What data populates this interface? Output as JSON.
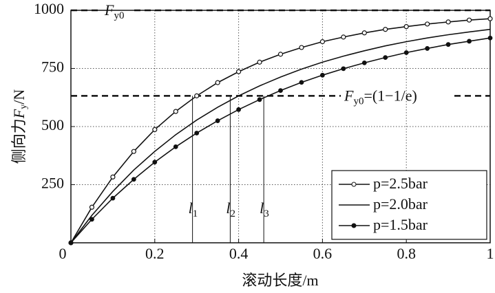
{
  "chart_data": {
    "type": "line",
    "xlabel": "滚动长度/m",
    "ylabel": {
      "main": "侧向力",
      "var": "F",
      "sub": "y",
      "tail": "/N"
    },
    "xlim": [
      0,
      1
    ],
    "ylim": [
      0,
      1000
    ],
    "xticks": [
      0,
      0.2,
      0.4,
      0.6,
      0.8,
      1
    ],
    "yticks": [
      250,
      500,
      750,
      1000
    ],
    "grid": true,
    "legend": "lower right",
    "x": [
      0,
      0.05,
      0.1,
      0.15,
      0.2,
      0.25,
      0.3,
      0.35,
      0.4,
      0.45,
      0.5,
      0.55,
      0.6,
      0.65,
      0.7,
      0.75,
      0.8,
      0.85,
      0.9,
      0.95,
      1
    ],
    "series": [
      {
        "name": "p=2.5bar",
        "color": "#111111",
        "marker": "open-circle",
        "values": [
          0,
          153,
          283,
          393,
          487,
          565,
          632,
          689,
          736,
          777,
          811,
          840,
          865,
          885,
          903,
          918,
          930,
          941,
          950,
          958,
          964
        ]
      },
      {
        "name": "p=2.0bar",
        "color": "#111111",
        "marker": "none",
        "values": [
          0,
          118,
          221,
          313,
          393,
          465,
          528,
          583,
          632,
          675,
          713,
          747,
          777,
          803,
          826,
          847,
          865,
          881,
          895,
          907,
          918
        ]
      },
      {
        "name": "p=1.5bar",
        "color": "#111111",
        "marker": "dot",
        "values": [
          0,
          101,
          192,
          273,
          347,
          413,
          472,
          525,
          573,
          616,
          655,
          690,
          721,
          749,
          774,
          797,
          818,
          836,
          853,
          867,
          881
        ]
      }
    ],
    "reference_lines": [
      {
        "value": 1000,
        "label": {
          "var": "F",
          "sub": "y0"
        }
      },
      {
        "value": 632,
        "label": {
          "var": "F",
          "sub": "y0",
          "tail": "=(1−1/e)"
        }
      }
    ],
    "markers": [
      {
        "x": 0.29,
        "y": 632,
        "var": "l",
        "sub": "1"
      },
      {
        "x": 0.38,
        "y": 632,
        "var": "l",
        "sub": "2"
      },
      {
        "x": 0.46,
        "y": 632,
        "var": "l",
        "sub": "3"
      }
    ]
  }
}
